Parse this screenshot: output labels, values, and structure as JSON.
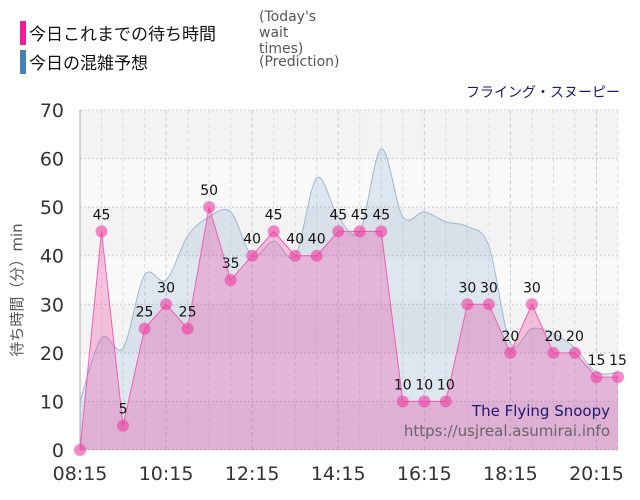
{
  "legend": [
    {
      "label": "今日これまでの待ち時間",
      "label_en": "(Today's wait times)",
      "color": "#ee1e96"
    },
    {
      "label": "今日の混雑予想",
      "label_en": "(Prediction)",
      "color": "#4682b4"
    }
  ],
  "attraction": "フライング・スヌーピー",
  "watermark": {
    "name": "The Flying Snoopy",
    "url": "https://usjreal.asumirai.info"
  },
  "chart_data": {
    "type": "area",
    "ylabel": "待ち時間（分）min",
    "ylim": [
      0,
      70
    ],
    "yticks": [
      0,
      10,
      20,
      30,
      40,
      50,
      60,
      70
    ],
    "xticks": [
      "08:15",
      "10:15",
      "12:15",
      "14:15",
      "16:15",
      "18:15",
      "20:15"
    ],
    "grid": true,
    "x": [
      "08:15",
      "08:45",
      "09:15",
      "09:45",
      "10:15",
      "10:45",
      "11:15",
      "11:45",
      "12:15",
      "12:45",
      "13:15",
      "13:45",
      "14:15",
      "14:45",
      "15:15",
      "15:45",
      "16:15",
      "16:45",
      "17:15",
      "17:45",
      "18:15",
      "18:45",
      "19:15",
      "19:45",
      "20:15",
      "20:45"
    ],
    "series": [
      {
        "name": "今日の混雑予想",
        "color": "#4682b4",
        "values": [
          10,
          23,
          21,
          36,
          35,
          44,
          48,
          49,
          40,
          43,
          40,
          56,
          48,
          45,
          62,
          48,
          49,
          47,
          46,
          42,
          22,
          25,
          24,
          21,
          16,
          16
        ]
      },
      {
        "name": "今日これまでの待ち時間",
        "color": "#ee1e96",
        "values": [
          0,
          45,
          5,
          25,
          30,
          25,
          50,
          35,
          40,
          45,
          40,
          40,
          45,
          45,
          45,
          10,
          10,
          10,
          30,
          30,
          20,
          30,
          20,
          20,
          15,
          15
        ]
      }
    ]
  }
}
